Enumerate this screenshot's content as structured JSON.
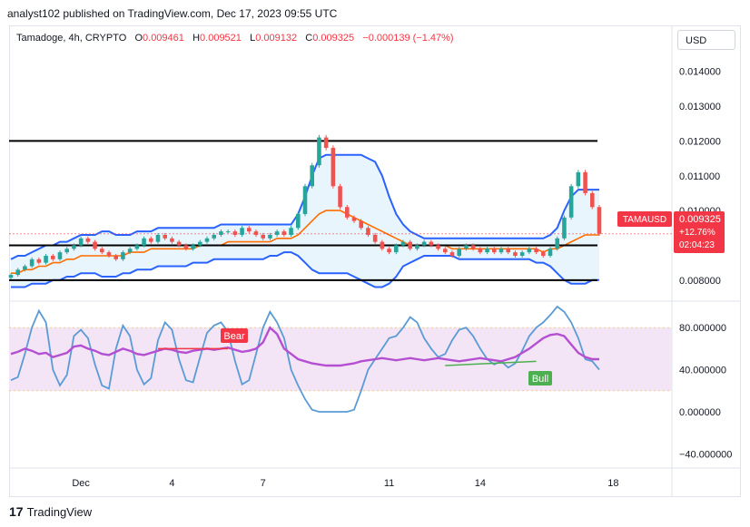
{
  "header": {
    "published_text": "analyst102 published on TradingView.com, Dec 17, 2023 09:55 UTC"
  },
  "ohlc": {
    "symbol_label": "Tamadoge, 4h, CRYPTO",
    "o_label": "O",
    "o_value": "0.009461",
    "h_label": "H",
    "h_value": "0.009521",
    "l_label": "L",
    "l_value": "0.009132",
    "c_label": "C",
    "c_value": "0.009325",
    "change": "−0.000139 (−1.47%)"
  },
  "currency_button": "USD",
  "price_badge": {
    "symbol": "TAMAUSD",
    "price": "0.009325",
    "change_pct": "+12.76%",
    "countdown": "02:04:23"
  },
  "annotations": {
    "bear_label": "Bear",
    "bull_label": "Bull"
  },
  "footer": {
    "brand": "TradingView",
    "logo_glyph": "17"
  },
  "colors": {
    "bull_candle": "#26a69a",
    "bear_candle": "#ef5350",
    "bollinger_band": "#2962ff",
    "bollinger_basis": "#ff6d00",
    "bollinger_fill": "#e3f2fd",
    "stoch_k": "#5b9bd5",
    "rsi_line": "#b34fd0",
    "rsi_band_fill": "#f3e5f5",
    "horizontal_line": "#000000",
    "badge": "#f23645"
  },
  "chart_data": [
    {
      "type": "candlestick",
      "title": "Tamadoge, 4h, CRYPTO",
      "y_ticks": [
        "0.014000",
        "0.013000",
        "0.012000",
        "0.011000",
        "0.010000",
        "0.008000"
      ],
      "ylim": [
        0.0075,
        0.0148
      ],
      "x_ticks": [
        "Dec",
        "4",
        "7",
        "11",
        "14",
        "18"
      ],
      "horizontal_levels": [
        0.012,
        0.009,
        0.008
      ],
      "series": [
        {
          "name": "close",
          "values": [
            0.00815,
            0.0083,
            0.0084,
            0.0086,
            0.0085,
            0.0087,
            0.0086,
            0.0088,
            0.0089,
            0.009,
            0.0092,
            0.0091,
            0.0089,
            0.0088,
            0.0087,
            0.0086,
            0.0088,
            0.0089,
            0.009,
            0.0092,
            0.0091,
            0.0093,
            0.0092,
            0.0091,
            0.009,
            0.0089,
            0.009,
            0.0091,
            0.0092,
            0.0093,
            0.0094,
            0.0094,
            0.0093,
            0.0095,
            0.0094,
            0.0093,
            0.0092,
            0.0093,
            0.0094,
            0.0093,
            0.0095,
            0.0099,
            0.0107,
            0.0113,
            0.0121,
            0.0118,
            0.0107,
            0.0101,
            0.0098,
            0.0097,
            0.0095,
            0.0093,
            0.0091,
            0.0089,
            0.0088,
            0.009,
            0.0091,
            0.0089,
            0.009,
            0.0091,
            0.009,
            0.0089,
            0.0088,
            0.0087,
            0.0089,
            0.009,
            0.0089,
            0.0088,
            0.0089,
            0.0088,
            0.0089,
            0.0088,
            0.0087,
            0.0088,
            0.0089,
            0.0088,
            0.0087,
            0.0089,
            0.0092,
            0.0098,
            0.0107,
            0.0111,
            0.0105,
            0.0101,
            0.00933
          ]
        },
        {
          "name": "bollinger_upper",
          "values": [
            0.0086,
            0.0087,
            0.0087,
            0.0088,
            0.0089,
            0.009,
            0.009,
            0.0091,
            0.0091,
            0.0092,
            0.0093,
            0.0093,
            0.0093,
            0.0094,
            0.0094,
            0.0093,
            0.0093,
            0.0093,
            0.0094,
            0.0094,
            0.0094,
            0.0095,
            0.0095,
            0.0095,
            0.0095,
            0.0095,
            0.0095,
            0.0095,
            0.0095,
            0.0095,
            0.0096,
            0.0096,
            0.0096,
            0.0096,
            0.0096,
            0.0096,
            0.0096,
            0.0096,
            0.0096,
            0.0096,
            0.0096,
            0.0099,
            0.0104,
            0.011,
            0.0115,
            0.0116,
            0.0116,
            0.0116,
            0.0116,
            0.0116,
            0.0116,
            0.0115,
            0.0114,
            0.011,
            0.0104,
            0.0099,
            0.0096,
            0.0094,
            0.0093,
            0.0092,
            0.0092,
            0.0092,
            0.0092,
            0.0092,
            0.0092,
            0.0092,
            0.0092,
            0.0092,
            0.0092,
            0.0092,
            0.0092,
            0.0092,
            0.0092,
            0.0092,
            0.0092,
            0.0092,
            0.0092,
            0.0093,
            0.0095,
            0.01,
            0.0104,
            0.0106,
            0.0106,
            0.0106,
            0.0106
          ]
        },
        {
          "name": "bollinger_basis",
          "values": [
            0.0082,
            0.0082,
            0.0083,
            0.0083,
            0.0084,
            0.0084,
            0.0085,
            0.0085,
            0.0086,
            0.0086,
            0.0087,
            0.0087,
            0.0087,
            0.0087,
            0.0087,
            0.0087,
            0.0087,
            0.0088,
            0.0088,
            0.0088,
            0.0089,
            0.0089,
            0.0089,
            0.0089,
            0.0089,
            0.0089,
            0.0089,
            0.009,
            0.009,
            0.009,
            0.009,
            0.0091,
            0.0091,
            0.0091,
            0.0091,
            0.0091,
            0.0091,
            0.0091,
            0.0092,
            0.0092,
            0.0092,
            0.0093,
            0.0095,
            0.0097,
            0.0099,
            0.01,
            0.01,
            0.01,
            0.0099,
            0.0098,
            0.0097,
            0.0096,
            0.0095,
            0.0094,
            0.0093,
            0.0092,
            0.0091,
            0.009,
            0.009,
            0.009,
            0.009,
            0.009,
            0.009,
            0.0089,
            0.0089,
            0.0089,
            0.0089,
            0.0089,
            0.0089,
            0.0089,
            0.0089,
            0.0089,
            0.0089,
            0.0089,
            0.0089,
            0.0089,
            0.0088,
            0.0089,
            0.0089,
            0.009,
            0.0091,
            0.0092,
            0.0093,
            0.0093,
            0.0093
          ]
        },
        {
          "name": "bollinger_lower",
          "values": [
            0.0078,
            0.0078,
            0.0078,
            0.0079,
            0.0079,
            0.0079,
            0.008,
            0.008,
            0.0081,
            0.0081,
            0.0082,
            0.0082,
            0.0082,
            0.0081,
            0.0081,
            0.0081,
            0.0082,
            0.0082,
            0.0083,
            0.0083,
            0.0083,
            0.0084,
            0.0084,
            0.0084,
            0.0084,
            0.0084,
            0.0085,
            0.0085,
            0.0085,
            0.0086,
            0.0086,
            0.0086,
            0.0086,
            0.0086,
            0.0086,
            0.0086,
            0.0086,
            0.0087,
            0.0087,
            0.0088,
            0.0088,
            0.0087,
            0.0085,
            0.0083,
            0.0082,
            0.0082,
            0.0082,
            0.0082,
            0.0082,
            0.0081,
            0.008,
            0.0079,
            0.0078,
            0.0078,
            0.0079,
            0.0081,
            0.0084,
            0.0085,
            0.0086,
            0.0087,
            0.0087,
            0.0087,
            0.0087,
            0.0087,
            0.0086,
            0.0086,
            0.0086,
            0.0086,
            0.0086,
            0.0086,
            0.0086,
            0.0086,
            0.0086,
            0.0086,
            0.0086,
            0.0085,
            0.0085,
            0.0084,
            0.0082,
            0.008,
            0.0079,
            0.0079,
            0.0079,
            0.008,
            0.008
          ]
        }
      ]
    },
    {
      "type": "line",
      "title": "",
      "y_ticks": [
        "80.000000",
        "40.000000",
        "0.000000",
        "−40.000000"
      ],
      "ylim": [
        -50,
        100
      ],
      "band": [
        20,
        80
      ],
      "series": [
        {
          "name": "stoch_k",
          "values": [
            30,
            33,
            55,
            80,
            96,
            85,
            40,
            25,
            35,
            72,
            78,
            70,
            45,
            25,
            22,
            60,
            82,
            72,
            40,
            26,
            32,
            68,
            85,
            78,
            50,
            30,
            28,
            52,
            75,
            82,
            85,
            76,
            48,
            26,
            30,
            55,
            80,
            95,
            85,
            70,
            40,
            25,
            12,
            2,
            0,
            0,
            0,
            0,
            0,
            2,
            20,
            40,
            50,
            60,
            70,
            72,
            80,
            90,
            85,
            70,
            60,
            52,
            55,
            68,
            78,
            80,
            72,
            60,
            50,
            45,
            48,
            42,
            46,
            58,
            72,
            80,
            85,
            92,
            100,
            95,
            85,
            70,
            50,
            48,
            40
          ]
        },
        {
          "name": "rsi",
          "values": [
            55,
            57,
            60,
            58,
            55,
            56,
            52,
            54,
            56,
            62,
            63,
            60,
            58,
            55,
            54,
            57,
            60,
            58,
            55,
            54,
            56,
            58,
            60,
            59,
            57,
            56,
            58,
            59,
            60,
            59,
            60,
            61,
            59,
            57,
            58,
            60,
            66,
            80,
            74,
            60,
            55,
            50,
            48,
            46,
            45,
            44,
            44,
            44,
            45,
            46,
            48,
            49,
            50,
            51,
            50,
            49,
            50,
            51,
            50,
            49,
            50,
            51,
            50,
            49,
            48,
            49,
            50,
            51,
            50,
            49,
            48,
            50,
            52,
            56,
            60,
            65,
            70,
            73,
            74,
            72,
            64,
            56,
            52,
            50,
            50
          ]
        }
      ]
    }
  ]
}
